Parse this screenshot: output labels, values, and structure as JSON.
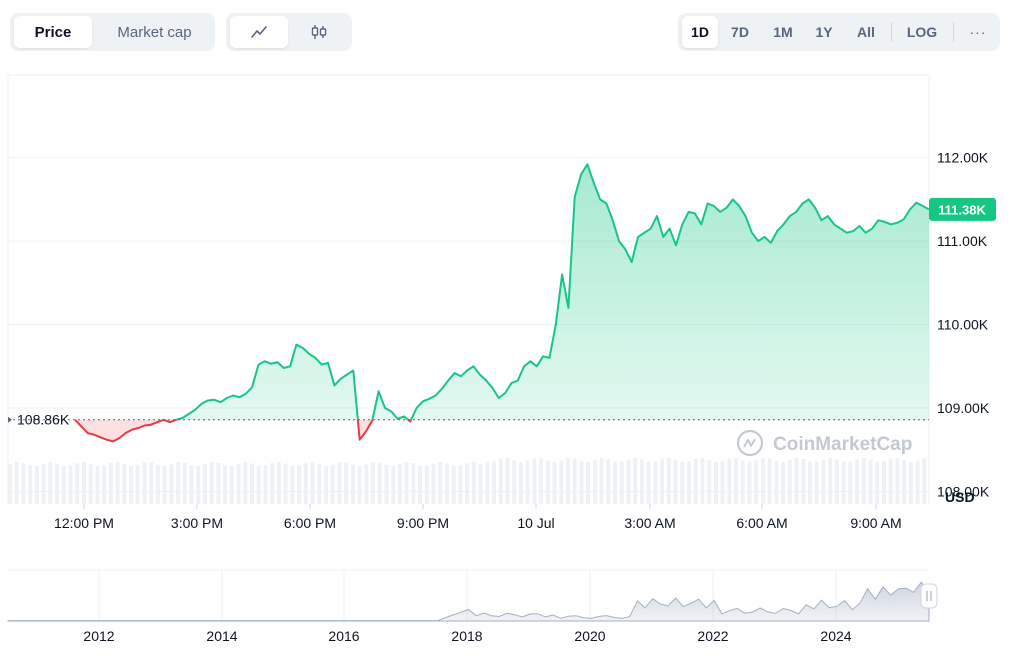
{
  "toolbar": {
    "metric_tabs": [
      {
        "label": "Price",
        "active": true
      },
      {
        "label": "Market cap",
        "active": false
      }
    ],
    "chart_type_icons": [
      "line-chart-icon",
      "candlestick-icon"
    ],
    "ranges": [
      {
        "label": "1D",
        "active": true
      },
      {
        "label": "7D",
        "active": false
      },
      {
        "label": "1M",
        "active": false
      },
      {
        "label": "1Y",
        "active": false
      },
      {
        "label": "All",
        "active": false
      }
    ],
    "log_label": "LOG",
    "more_label": "···"
  },
  "watermark": "CoinMarketCap",
  "colors": {
    "up": "#16c784",
    "down": "#ea3943",
    "grid": "#eff2f5",
    "axis_text": "#58667e"
  },
  "chart_data": {
    "type": "area",
    "unit": "USD",
    "y_ticks": [
      {
        "value": 108000,
        "label": "108.00K"
      },
      {
        "value": 109000,
        "label": "109.00K"
      },
      {
        "value": 110000,
        "label": "110.00K"
      },
      {
        "value": 111000,
        "label": "111.00K"
      },
      {
        "value": 112000,
        "label": "112.00K"
      }
    ],
    "ylim": [
      107850,
      112990
    ],
    "x_ticks": [
      "12:00 PM",
      "3:00 PM",
      "6:00 PM",
      "9:00 PM",
      "10 Jul",
      "3:00 AM",
      "6:00 AM",
      "9:00 AM"
    ],
    "reference_price": {
      "value": 108860,
      "label": "108.86K"
    },
    "current_price": {
      "value": 111380,
      "label": "111.38K"
    },
    "series": [
      {
        "values": [
          108860,
          108780,
          108700,
          108680,
          108650,
          108620,
          108600,
          108640,
          108700,
          108740,
          108760,
          108790,
          108800,
          108830,
          108860,
          108830,
          108860,
          108880,
          108930,
          108980,
          109050,
          109090,
          109100,
          109070,
          109120,
          109150,
          109130,
          109170,
          109250,
          109520,
          109560,
          109530,
          109550,
          109480,
          109500,
          109760,
          109720,
          109650,
          109600,
          109520,
          109540,
          109270,
          109350,
          109400,
          109450,
          108620,
          108720,
          108850,
          109200,
          109000,
          108960,
          108870,
          108900,
          108840,
          109000,
          109080,
          109110,
          109150,
          109230,
          109330,
          109420,
          109380,
          109450,
          109500,
          109400,
          109330,
          109240,
          109120,
          109180,
          109300,
          109330,
          109500,
          109560,
          109500,
          109620,
          109600,
          110000,
          110600,
          110200,
          111530,
          111800,
          111920,
          111700,
          111500,
          111450,
          111250,
          111000,
          110900,
          110750,
          111050,
          111100,
          111150,
          111300,
          111050,
          111150,
          110950,
          111200,
          111350,
          111330,
          111200,
          111450,
          111420,
          111350,
          111400,
          111500,
          111420,
          111300,
          111100,
          111000,
          111050,
          110980,
          111120,
          111200,
          111300,
          111350,
          111450,
          111500,
          111400,
          111250,
          111300,
          111200,
          111150,
          111100,
          111120,
          111180,
          111100,
          111150,
          111250,
          111230,
          111200,
          111220,
          111260,
          111380,
          111460,
          111420,
          111380
        ]
      },
      {
        "values": [
          1,
          1,
          1,
          1,
          1,
          1,
          1,
          1,
          1,
          1,
          1,
          1,
          1,
          1,
          1,
          1,
          1,
          1,
          1,
          1,
          1,
          1,
          1,
          1,
          1,
          1,
          1,
          1,
          1,
          1,
          1,
          1,
          1,
          1,
          1,
          1,
          1,
          1,
          1,
          1,
          1,
          1,
          1,
          1,
          1,
          1,
          1,
          1,
          1,
          1,
          1,
          1,
          1,
          1,
          1,
          1,
          1,
          1,
          1,
          1,
          1,
          1,
          1,
          1,
          1,
          1,
          1,
          1,
          1,
          1,
          1,
          1,
          1,
          1,
          1,
          1,
          1,
          1,
          1,
          1,
          1,
          1,
          1,
          1,
          1,
          1,
          1,
          1,
          1,
          1,
          1,
          1,
          1,
          1,
          1,
          1,
          1,
          1,
          1,
          1,
          1,
          1,
          1,
          1,
          1,
          1,
          1,
          1,
          1,
          1,
          1,
          1,
          1,
          1,
          1,
          1,
          1,
          1,
          1,
          1,
          1,
          1,
          1,
          1,
          1,
          1,
          1,
          1,
          1,
          1,
          1,
          1,
          1,
          1,
          1,
          1,
          1
        ]
      }
    ],
    "navigator": {
      "x_ticks": [
        "2012",
        "2014",
        "2016",
        "2018",
        "2020",
        "2022",
        "2024"
      ]
    }
  }
}
